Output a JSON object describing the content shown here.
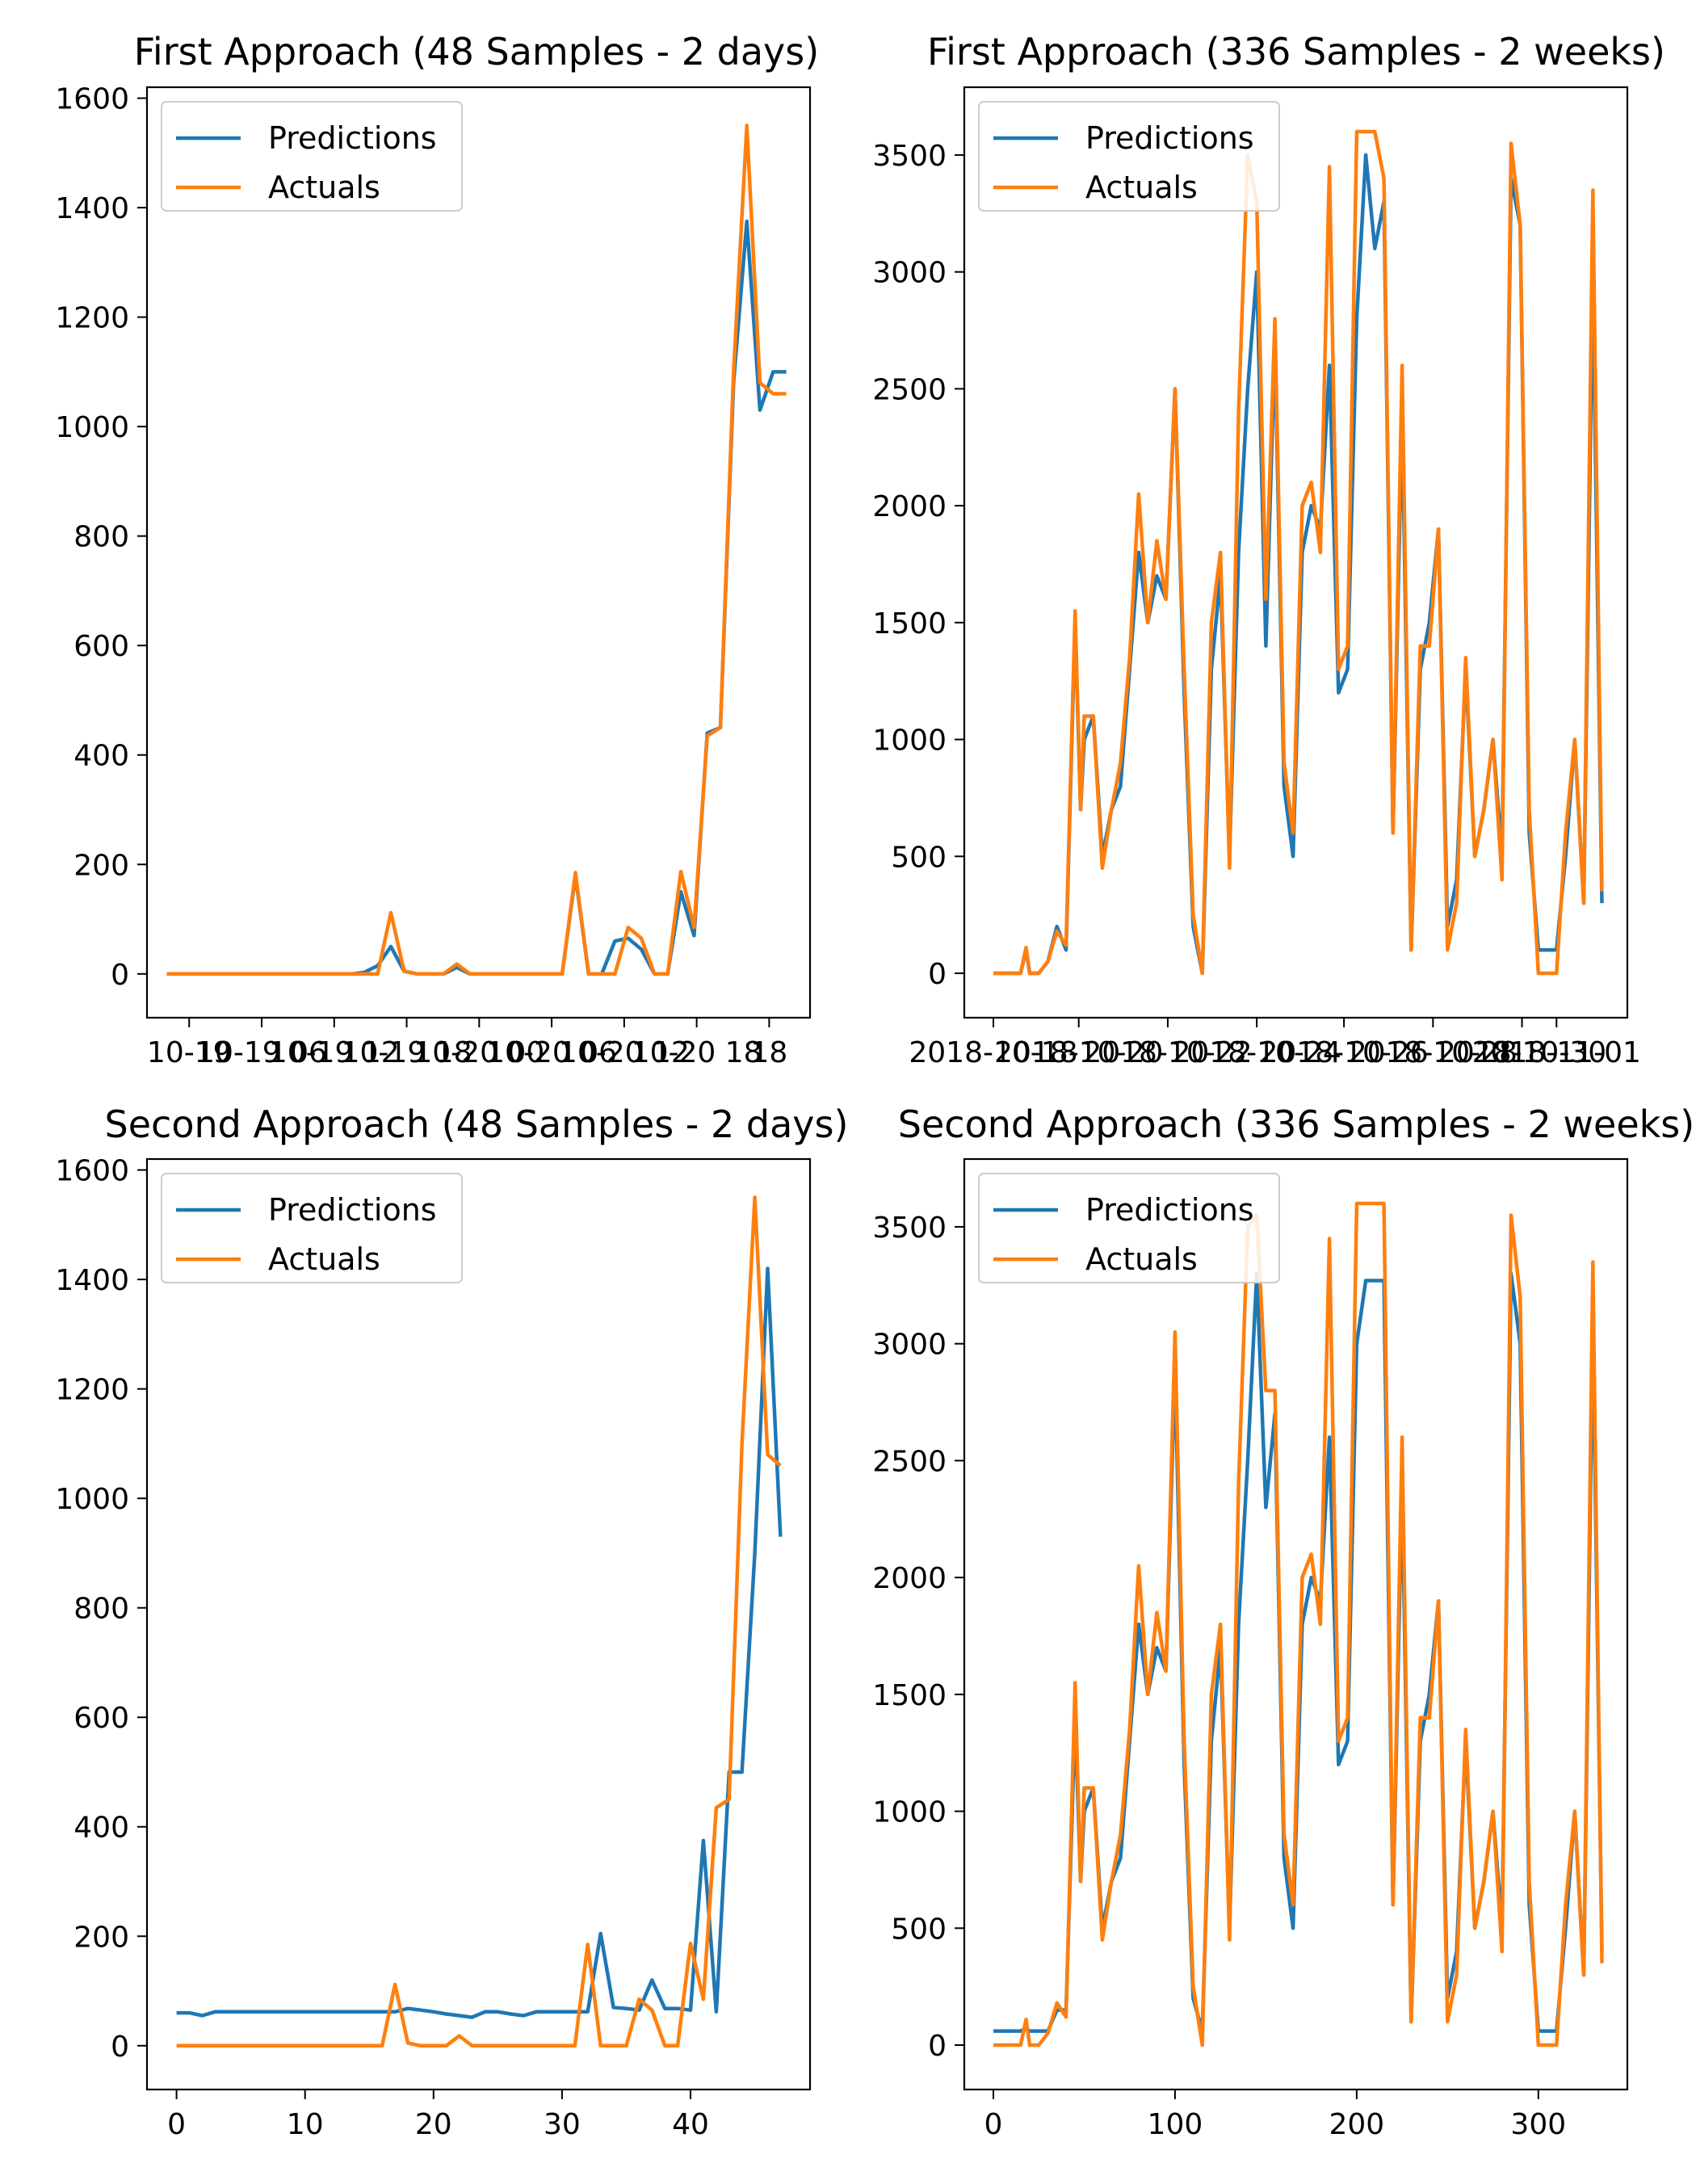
{
  "chart_data": [
    {
      "type": "line",
      "title": "First Approach (48 Samples - 2 days)",
      "xlabel": "",
      "ylabel": "",
      "xlim": [
        -1.5,
        48.8
      ],
      "ylim": [
        -80,
        1620
      ],
      "yticks": [
        0,
        200,
        400,
        600,
        800,
        1000,
        1200,
        1400,
        1600
      ],
      "xticks_at": [
        1.7,
        7.2,
        12.7,
        18.2,
        23.7,
        29.2,
        34.7,
        40.2,
        45.7
      ],
      "xtick_labels": [
        "10-19",
        "10-19 06",
        "10-19 12",
        "10-19 18",
        "10-20 00",
        "10-20 06",
        "10-20 12",
        "10-20 18",
        "18"
      ],
      "legend": "top-left",
      "grid": false,
      "series": [
        {
          "name": "Predictions",
          "color": "#1f77b4",
          "x": [
            0,
            1,
            2,
            3,
            4,
            5,
            6,
            7,
            8,
            9,
            10,
            11,
            12,
            13,
            14,
            15,
            16,
            17,
            18,
            19,
            20,
            21,
            22,
            23,
            24,
            25,
            26,
            27,
            28,
            29,
            30,
            31,
            32,
            33,
            34,
            35,
            36,
            37,
            38,
            39,
            40,
            41,
            42,
            43,
            44,
            45,
            46,
            47
          ],
          "y": [
            0,
            0,
            0,
            0,
            0,
            0,
            0,
            0,
            0,
            0,
            0,
            0,
            0,
            0,
            0,
            3,
            15,
            50,
            5,
            0,
            0,
            0,
            12,
            0,
            0,
            0,
            0,
            0,
            0,
            0,
            0,
            180,
            0,
            0,
            60,
            65,
            45,
            0,
            0,
            150,
            70,
            440,
            450,
            1080,
            1375,
            1030,
            1100,
            1100
          ]
        },
        {
          "name": "Actuals",
          "color": "#ff7f0e",
          "x": [
            0,
            1,
            2,
            3,
            4,
            5,
            6,
            7,
            8,
            9,
            10,
            11,
            12,
            13,
            14,
            15,
            16,
            17,
            18,
            19,
            20,
            21,
            22,
            23,
            24,
            25,
            26,
            27,
            28,
            29,
            30,
            31,
            32,
            33,
            34,
            35,
            36,
            37,
            38,
            39,
            40,
            41,
            42,
            43,
            44,
            45,
            46,
            47
          ],
          "y": [
            0,
            0,
            0,
            0,
            0,
            0,
            0,
            0,
            0,
            0,
            0,
            0,
            0,
            0,
            0,
            0,
            0,
            112,
            5,
            0,
            0,
            0,
            18,
            0,
            0,
            0,
            0,
            0,
            0,
            0,
            0,
            185,
            0,
            0,
            0,
            85,
            65,
            0,
            0,
            187,
            85,
            435,
            450,
            1100,
            1550,
            1080,
            1060,
            1060
          ]
        }
      ]
    },
    {
      "type": "line",
      "title": "First Approach (336 Samples - 2 weeks)",
      "xlabel": "",
      "ylabel": "",
      "xlim": [
        -16,
        349
      ],
      "ylim": [
        -190,
        3790
      ],
      "yticks": [
        0,
        500,
        1000,
        1500,
        2000,
        2500,
        3000,
        3500
      ],
      "xticks_at": [
        0,
        47,
        96,
        145,
        193,
        242,
        291,
        310
      ],
      "xtick_labels": [
        "2018-10-18",
        "2018-10-20",
        "2018-10-22",
        "2018-10-24",
        "2018-10-26",
        "2018-10-28",
        "2018-10-30",
        "2018-11-01"
      ],
      "legend": "top-left",
      "grid": false,
      "series": [
        {
          "name": "Predictions",
          "color": "#1f77b4",
          "x": [
            0,
            5,
            10,
            15,
            18,
            20,
            25,
            30,
            35,
            40,
            45,
            48,
            50,
            55,
            60,
            65,
            70,
            75,
            80,
            85,
            90,
            95,
            100,
            105,
            110,
            115,
            120,
            125,
            130,
            135,
            140,
            145,
            150,
            155,
            160,
            165,
            170,
            175,
            180,
            185,
            190,
            195,
            200,
            205,
            210,
            215,
            220,
            225,
            230,
            235,
            240,
            245,
            250,
            255,
            260,
            265,
            270,
            275,
            280,
            285,
            290,
            295,
            300,
            305,
            310,
            315,
            320,
            325,
            330,
            335
          ],
          "y": [
            0,
            0,
            0,
            0,
            100,
            0,
            0,
            50,
            200,
            100,
            1500,
            700,
            1000,
            1100,
            500,
            700,
            800,
            1300,
            1800,
            1500,
            1700,
            1600,
            2500,
            1200,
            200,
            0,
            1300,
            1700,
            500,
            1800,
            2500,
            3000,
            1400,
            2700,
            800,
            500,
            1800,
            2000,
            1900,
            2600,
            1200,
            1300,
            2800,
            3500,
            3100,
            3300,
            600,
            2400,
            100,
            1300,
            1500,
            1900,
            200,
            400,
            1300,
            500,
            700,
            1000,
            500,
            3400,
            3200,
            600,
            100,
            100,
            100,
            500,
            1000,
            300,
            3000,
            300
          ]
        },
        {
          "name": "Actuals",
          "color": "#ff7f0e",
          "x": [
            0,
            5,
            10,
            15,
            18,
            20,
            25,
            30,
            35,
            40,
            45,
            48,
            50,
            55,
            60,
            65,
            70,
            75,
            80,
            85,
            90,
            95,
            100,
            105,
            110,
            115,
            120,
            125,
            130,
            135,
            140,
            145,
            150,
            155,
            160,
            165,
            170,
            175,
            180,
            185,
            190,
            195,
            200,
            205,
            210,
            215,
            220,
            225,
            230,
            235,
            240,
            245,
            250,
            255,
            260,
            265,
            270,
            275,
            280,
            285,
            290,
            295,
            300,
            305,
            310,
            315,
            320,
            325,
            330,
            335
          ],
          "y": [
            0,
            0,
            0,
            0,
            110,
            0,
            0,
            50,
            180,
            120,
            1550,
            700,
            1100,
            1100,
            450,
            700,
            900,
            1350,
            2050,
            1500,
            1850,
            1600,
            2500,
            1300,
            250,
            0,
            1500,
            1800,
            450,
            2400,
            3500,
            3300,
            1600,
            2800,
            900,
            600,
            2000,
            2100,
            1800,
            3450,
            1300,
            1400,
            3600,
            3600,
            3600,
            3400,
            600,
            2600,
            100,
            1400,
            1400,
            1900,
            100,
            300,
            1350,
            500,
            700,
            1000,
            400,
            3550,
            3200,
            700,
            0,
            0,
            0,
            600,
            1000,
            300,
            3350,
            350
          ]
        }
      ]
    },
    {
      "type": "line",
      "title": "Second Approach (48 Samples - 2 days)",
      "xlabel": "",
      "ylabel": "",
      "xlim": [
        -2.3,
        49.3
      ],
      "ylim": [
        -80,
        1620
      ],
      "yticks": [
        0,
        200,
        400,
        600,
        800,
        1000,
        1200,
        1400,
        1600
      ],
      "xticks": [
        0,
        10,
        20,
        30,
        40
      ],
      "legend": "top-left",
      "grid": false,
      "series": [
        {
          "name": "Predictions",
          "color": "#1f77b4",
          "x": [
            0,
            1,
            2,
            3,
            4,
            5,
            6,
            7,
            8,
            9,
            10,
            11,
            12,
            13,
            14,
            15,
            16,
            17,
            18,
            19,
            20,
            21,
            22,
            23,
            24,
            25,
            26,
            27,
            28,
            29,
            30,
            31,
            32,
            33,
            34,
            35,
            36,
            37,
            38,
            39,
            40,
            41,
            42,
            43,
            44,
            45,
            46,
            47
          ],
          "y": [
            60,
            60,
            55,
            62,
            62,
            62,
            62,
            62,
            62,
            62,
            62,
            62,
            62,
            62,
            62,
            62,
            62,
            62,
            68,
            65,
            62,
            58,
            55,
            52,
            62,
            62,
            58,
            55,
            62,
            62,
            62,
            62,
            62,
            205,
            70,
            68,
            65,
            120,
            68,
            68,
            65,
            375,
            62,
            500,
            500,
            900,
            1420,
            930
          ]
        },
        {
          "name": "Actuals",
          "color": "#ff7f0e",
          "x": [
            0,
            1,
            2,
            3,
            4,
            5,
            6,
            7,
            8,
            9,
            10,
            11,
            12,
            13,
            14,
            15,
            16,
            17,
            18,
            19,
            20,
            21,
            22,
            23,
            24,
            25,
            26,
            27,
            28,
            29,
            30,
            31,
            32,
            33,
            34,
            35,
            36,
            37,
            38,
            39,
            40,
            41,
            42,
            43,
            44,
            45,
            46,
            47
          ],
          "y": [
            0,
            0,
            0,
            0,
            0,
            0,
            0,
            0,
            0,
            0,
            0,
            0,
            0,
            0,
            0,
            0,
            0,
            112,
            5,
            0,
            0,
            0,
            18,
            0,
            0,
            0,
            0,
            0,
            0,
            0,
            0,
            0,
            185,
            0,
            0,
            0,
            85,
            65,
            0,
            0,
            187,
            85,
            435,
            450,
            1100,
            1550,
            1080,
            1060
          ]
        }
      ]
    },
    {
      "type": "line",
      "title": "Second Approach (336 Samples - 2 weeks)",
      "xlabel": "",
      "ylabel": "",
      "xlim": [
        -16,
        349
      ],
      "ylim": [
        -190,
        3790
      ],
      "yticks": [
        0,
        500,
        1000,
        1500,
        2000,
        2500,
        3000,
        3500
      ],
      "xticks": [
        0,
        100,
        200,
        300
      ],
      "legend": "top-left",
      "grid": false,
      "series": [
        {
          "name": "Predictions",
          "color": "#1f77b4",
          "x": [
            0,
            5,
            10,
            15,
            18,
            20,
            25,
            30,
            35,
            40,
            45,
            48,
            50,
            55,
            60,
            65,
            70,
            75,
            80,
            85,
            90,
            95,
            100,
            105,
            110,
            115,
            120,
            125,
            130,
            135,
            140,
            145,
            150,
            155,
            160,
            165,
            170,
            175,
            180,
            185,
            190,
            195,
            200,
            205,
            210,
            215,
            220,
            225,
            230,
            235,
            240,
            245,
            250,
            255,
            260,
            265,
            270,
            275,
            280,
            285,
            290,
            295,
            300,
            305,
            310,
            315,
            320,
            325,
            330,
            335
          ],
          "y": [
            60,
            60,
            60,
            60,
            70,
            60,
            60,
            60,
            150,
            150,
            1400,
            700,
            1000,
            1100,
            500,
            700,
            800,
            1300,
            1800,
            1500,
            1700,
            1600,
            2900,
            1200,
            200,
            60,
            1300,
            1700,
            500,
            1800,
            2500,
            3300,
            2300,
            2700,
            800,
            500,
            1800,
            2000,
            1900,
            2600,
            1200,
            1300,
            3000,
            3270,
            3270,
            3270,
            600,
            2400,
            100,
            1300,
            1500,
            1900,
            200,
            400,
            1300,
            500,
            700,
            1000,
            500,
            3300,
            3000,
            600,
            60,
            60,
            60,
            500,
            1000,
            300,
            3100,
            400
          ]
        },
        {
          "name": "Actuals",
          "color": "#ff7f0e",
          "x": [
            0,
            5,
            10,
            15,
            18,
            20,
            25,
            30,
            35,
            40,
            45,
            48,
            50,
            55,
            60,
            65,
            70,
            75,
            80,
            85,
            90,
            95,
            100,
            105,
            110,
            115,
            120,
            125,
            130,
            135,
            140,
            145,
            150,
            155,
            160,
            165,
            170,
            175,
            180,
            185,
            190,
            195,
            200,
            205,
            210,
            215,
            220,
            225,
            230,
            235,
            240,
            245,
            250,
            255,
            260,
            265,
            270,
            275,
            280,
            285,
            290,
            295,
            300,
            305,
            310,
            315,
            320,
            325,
            330,
            335
          ],
          "y": [
            0,
            0,
            0,
            0,
            110,
            0,
            0,
            50,
            180,
            120,
            1550,
            700,
            1100,
            1100,
            450,
            700,
            900,
            1350,
            2050,
            1500,
            1850,
            1600,
            3050,
            1300,
            250,
            0,
            1500,
            1800,
            450,
            2400,
            3500,
            3550,
            2800,
            2800,
            900,
            600,
            2000,
            2100,
            1800,
            3450,
            1300,
            1400,
            3600,
            3600,
            3600,
            3600,
            600,
            2600,
            100,
            1400,
            1400,
            1900,
            100,
            300,
            1350,
            500,
            700,
            1000,
            400,
            3550,
            3200,
            700,
            0,
            0,
            0,
            600,
            1000,
            300,
            3350,
            350
          ]
        }
      ]
    }
  ]
}
